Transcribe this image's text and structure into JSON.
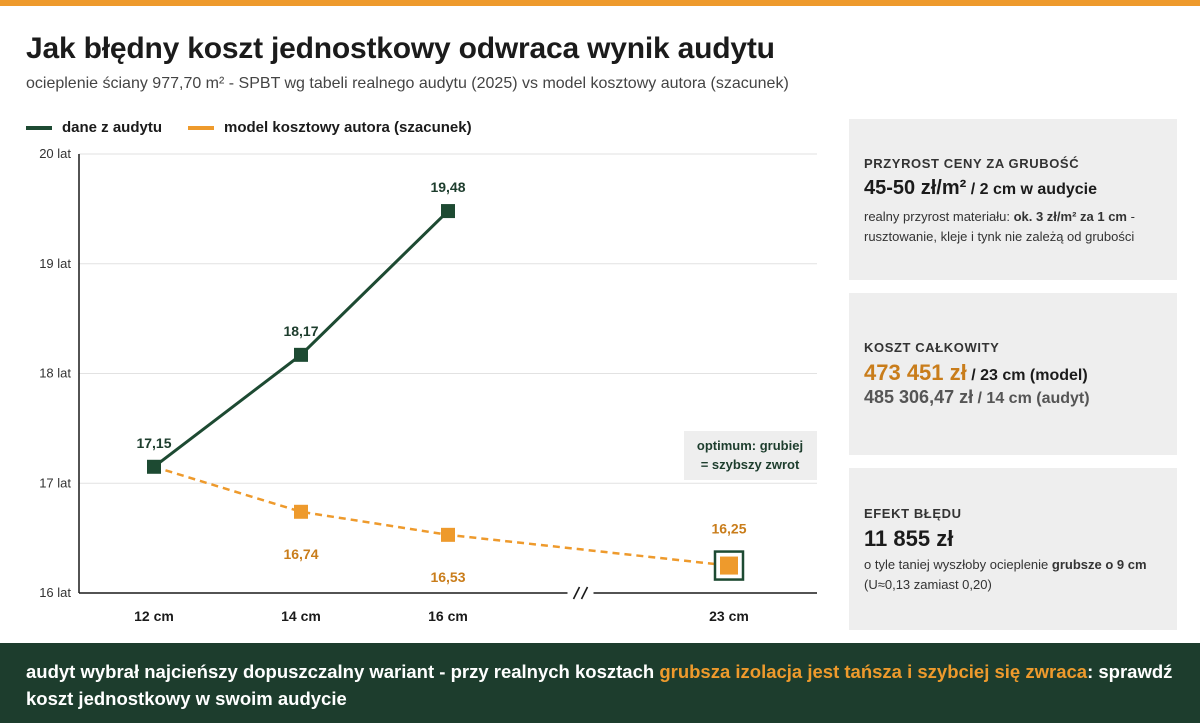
{
  "header": {
    "title": "Jak błędny koszt jednostkowy odwraca wynik audytu",
    "subtitle": "ocieplenie ściany 977,70 m² - SPBT wg tabeli realnego audytu (2025) vs model kosztowy autora (szacunek)"
  },
  "legend": [
    {
      "label": "dane z audytu",
      "color": "#1d4a32"
    },
    {
      "label": "model kosztowy autora (szacunek)",
      "color": "#ee9a2c"
    }
  ],
  "chart_data": {
    "type": "line",
    "x_categories": [
      "12 cm",
      "14 cm",
      "16 cm",
      "23 cm"
    ],
    "axis_break_between": [
      "16 cm",
      "23 cm"
    ],
    "y_ticks": [
      "16 lat",
      "17 lat",
      "18 lat",
      "19 lat",
      "20 lat"
    ],
    "ylim": [
      16,
      20
    ],
    "grid": true,
    "series": [
      {
        "name": "dane z audytu",
        "color": "#1d4a32",
        "line": "solid",
        "points": [
          {
            "x": "12 cm",
            "y": 17.15,
            "label": "17,15"
          },
          {
            "x": "14 cm",
            "y": 18.17,
            "label": "18,17"
          },
          {
            "x": "16 cm",
            "y": 19.48,
            "label": "19,48"
          }
        ]
      },
      {
        "name": "model kosztowy autora (szacunek)",
        "color": "#ee9a2c",
        "line": "dashed",
        "points": [
          {
            "x": "12 cm",
            "y": 17.15,
            "label": ""
          },
          {
            "x": "14 cm",
            "y": 16.74,
            "label": "16,74"
          },
          {
            "x": "16 cm",
            "y": 16.53,
            "label": "16,53"
          },
          {
            "x": "23 cm",
            "y": 16.25,
            "label": "16,25"
          }
        ]
      }
    ],
    "annotation": {
      "line1": "optimum: grubiej",
      "line2": "= szybszy zwrot"
    }
  },
  "cards": [
    {
      "label": "PRZYROST CENY ZA GRUBOŚĆ",
      "big": "45-50 zł/m²",
      "big_suffix": " / 2 cm w audycie",
      "note_pre": "realny przyrost materiału: ",
      "note_bold": "ok. 3 zł/m² za 1 cm",
      "note_post": " - rusztowanie, kleje i tynk nie zależą od grubości"
    },
    {
      "label": "KOSZT CAŁKOWITY",
      "big": "473 451 zł",
      "big_suffix": " / 23 cm (model)",
      "big2": "485 306,47 zł",
      "big2_suffix": " / 14 cm (audyt)"
    },
    {
      "label": "EFEKT BŁĘDU",
      "big": "11 855 zł",
      "note_pre": "o tyle taniej wyszłoby ocieplenie ",
      "note_bold": "grubsze o 9 cm",
      "note_post": " (U≈0,13 zamiast 0,20)"
    }
  ],
  "footer": {
    "part1": "audyt wybrał najcieńszy dopuszczalny wariant - przy realnych kosztach ",
    "highlight": "grubsza izolacja jest tańsza i szybciej się zwraca",
    "part2": ": sprawdź koszt jednostkowy w swoim audycie"
  }
}
